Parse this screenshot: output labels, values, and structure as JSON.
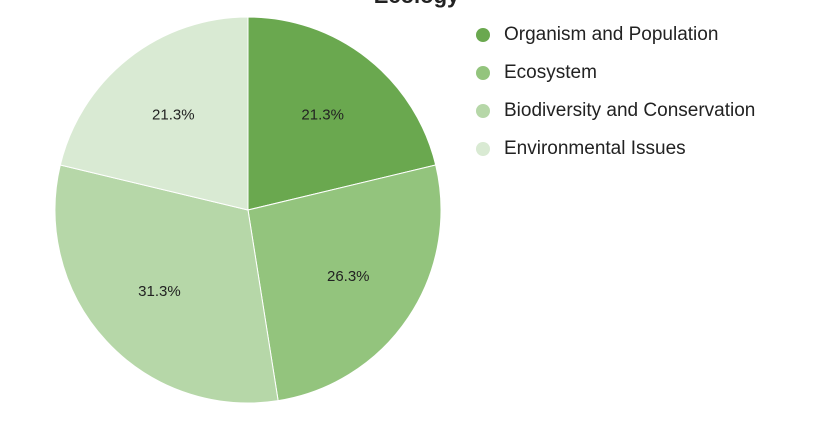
{
  "chart_data": {
    "type": "pie",
    "title": "Ecology",
    "slices": [
      {
        "label": "Organism and Population",
        "value": 21.3,
        "display": "21.3%",
        "color": "#6aa84f"
      },
      {
        "label": "Ecosystem",
        "value": 26.3,
        "display": "26.3%",
        "color": "#93c47d"
      },
      {
        "label": "Biodiversity and Conservation",
        "value": 31.3,
        "display": "31.3%",
        "color": "#b6d7a8"
      },
      {
        "label": "Environmental Issues",
        "value": 21.3,
        "display": "21.3%",
        "color": "#d9ead3"
      }
    ],
    "legend_position": "right",
    "start_angle": "12 o'clock",
    "direction": "clockwise"
  }
}
